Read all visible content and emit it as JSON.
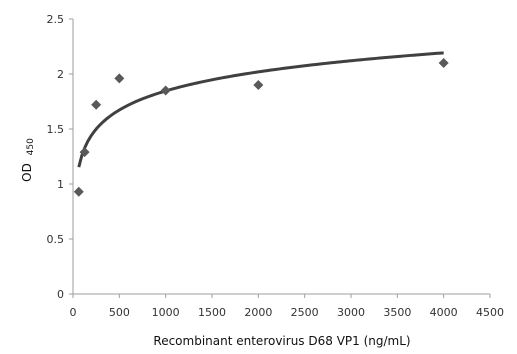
{
  "chart_data": {
    "type": "scatter",
    "title": "",
    "xlabel": "Recombinant enterovirus D68 VP1 (ng/mL)",
    "ylabel_main": "OD",
    "ylabel_sub": "450",
    "xlim": [
      0,
      4500
    ],
    "ylim": [
      0,
      2.5
    ],
    "x_ticks": [
      0,
      500,
      1000,
      1500,
      2000,
      2500,
      3000,
      3500,
      4000,
      4500
    ],
    "y_ticks": [
      "0",
      "0.5",
      "1",
      "1.5",
      "2",
      "2.5"
    ],
    "grid": false,
    "legend": "none",
    "series": [
      {
        "type": "scatter",
        "marker": "diamond",
        "color": "#595959",
        "x": [
          62.5,
          125,
          250,
          500,
          1000,
          2000,
          4000
        ],
        "y": [
          0.93,
          1.29,
          1.72,
          1.96,
          1.85,
          1.9,
          2.1
        ]
      },
      {
        "type": "trendline",
        "model": "logarithmic",
        "color": "#404040",
        "x_range": [
          62.5,
          4000
        ],
        "x": [
          62.5,
          125,
          250,
          500,
          1000,
          2000,
          3000,
          4000
        ],
        "y": [
          1.15,
          1.33,
          1.5,
          1.67,
          1.85,
          2.02,
          2.12,
          2.19
        ]
      }
    ]
  }
}
